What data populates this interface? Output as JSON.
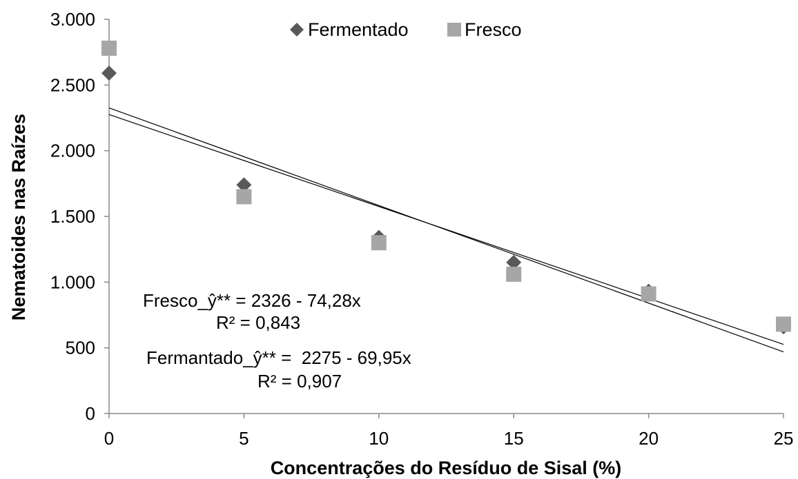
{
  "chart_data": {
    "type": "scatter",
    "title": "",
    "xlabel": "Concentrações do Resíduo de Sisal (%)",
    "ylabel": "Nematoides nas Raízes",
    "xlim": [
      0,
      25
    ],
    "ylim": [
      0,
      3000
    ],
    "xticks": [
      0,
      5,
      10,
      15,
      20,
      25
    ],
    "xtick_labels": [
      "0",
      "5",
      "10",
      "15",
      "20",
      "25"
    ],
    "yticks": [
      0,
      500,
      1000,
      1500,
      2000,
      2500,
      3000
    ],
    "ytick_labels": [
      "0",
      "500",
      "1.000",
      "1.500",
      "2.000",
      "2.500",
      "3.000"
    ],
    "grid": false,
    "legend_position": "top-center",
    "series": [
      {
        "name": "Fermentado",
        "marker": "diamond",
        "color": "#595959",
        "x": [
          0,
          5,
          10,
          15,
          20,
          25
        ],
        "y": [
          2590,
          1740,
          1340,
          1150,
          930,
          660
        ],
        "trendline": {
          "intercept": 2275,
          "slope": -69.95
        }
      },
      {
        "name": "Fresco",
        "marker": "square",
        "color": "#a6a6a6",
        "x": [
          0,
          5,
          10,
          15,
          20,
          25
        ],
        "y": [
          2780,
          1650,
          1300,
          1060,
          910,
          680
        ],
        "trendline": {
          "intercept": 2326,
          "slope": -74.28
        }
      }
    ],
    "annotations": {
      "fresco_equation": "Fresco_ŷ** = 2326 - 74,28x",
      "fresco_r2": "R² = 0,843",
      "fermentado_equation": "Fermantado_ŷ** =  2275 - 69,95x",
      "fermentado_r2": "R² = 0,907"
    }
  }
}
